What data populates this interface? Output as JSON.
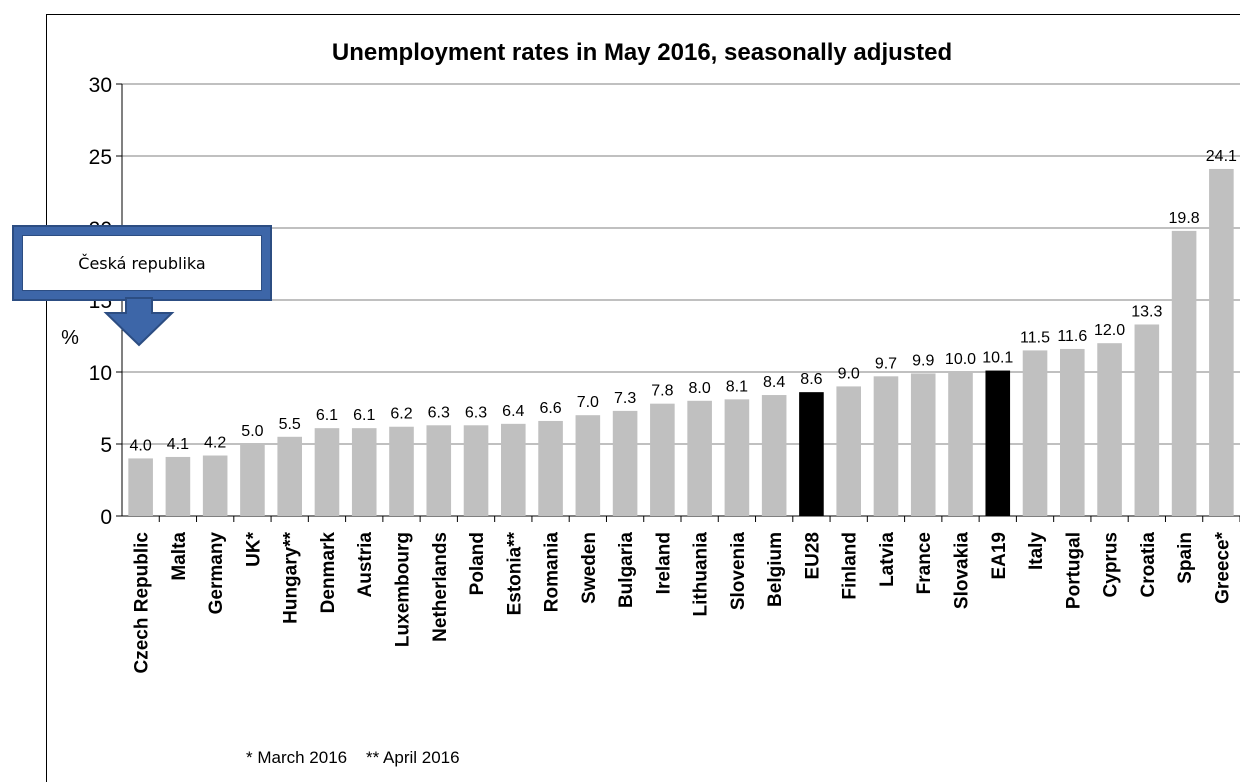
{
  "callout": {
    "text": "Česká republika"
  },
  "chart_data": {
    "type": "bar",
    "title": "Unemployment rates in May 2016, seasonally adjusted",
    "ylabel": "%",
    "xlabel": "",
    "ylim": [
      0,
      30
    ],
    "yticks": [
      0,
      5,
      10,
      15,
      20,
      25,
      30
    ],
    "grid": true,
    "categories": [
      "Czech Republic",
      "Malta",
      "Germany",
      "UK*",
      "Hungary**",
      "Denmark",
      "Austria",
      "Luxembourg",
      "Netherlands",
      "Poland",
      "Estonia**",
      "Romania",
      "Sweden",
      "Bulgaria",
      "Ireland",
      "Lithuania",
      "Slovenia",
      "Belgium",
      "EU28",
      "Finland",
      "Latvia",
      "France",
      "Slovakia",
      "EA19",
      "Italy",
      "Portugal",
      "Cyprus",
      "Croatia",
      "Spain",
      "Greece*"
    ],
    "values": [
      4.0,
      4.1,
      4.2,
      5.0,
      5.5,
      6.1,
      6.1,
      6.2,
      6.3,
      6.3,
      6.4,
      6.6,
      7.0,
      7.3,
      7.8,
      8.0,
      8.1,
      8.4,
      8.6,
      9.0,
      9.7,
      9.9,
      10.0,
      10.1,
      11.5,
      11.6,
      12.0,
      13.3,
      19.8,
      24.1
    ],
    "value_labels": [
      "4.0",
      "4.1",
      "4.2",
      "5.0",
      "5.5",
      "6.1",
      "6.1",
      "6.2",
      "6.3",
      "6.3",
      "6.4",
      "6.6",
      "7.0",
      "7.3",
      "7.8",
      "8.0",
      "8.1",
      "8.4",
      "8.6",
      "9.0",
      "9.7",
      "9.9",
      "10.0",
      "10.1",
      "11.5",
      "11.6",
      "12.0",
      "13.3",
      "19.8",
      "24.1"
    ],
    "highlighted": [
      "EU28",
      "EA19"
    ],
    "colors": {
      "bar": "#c0c0c0",
      "highlight": "#000000",
      "grid": "#808080",
      "text": "#000000"
    },
    "footnote": "* March 2016    ** April 2016"
  }
}
